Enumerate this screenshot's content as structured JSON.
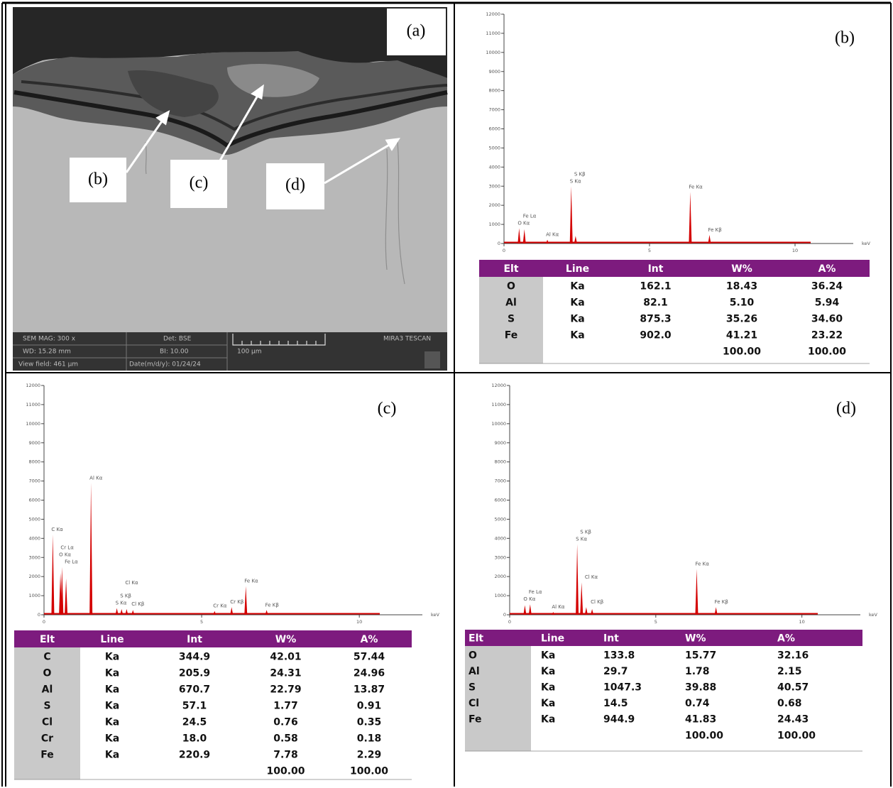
{
  "panels": [
    {
      "label": "(a)",
      "callouts": [
        "(b)",
        "(c)",
        "(d)"
      ],
      "info": [
        "SEM MAG: 300 x",
        "Det: BSE",
        "WD: 15.28 mm",
        "BI: 10.00",
        "View field: 461 µm",
        "Date(m/d/y): 01/24/24",
        "100 µm",
        "MIRA3 TESCAN"
      ]
    },
    {
      "label": "(b)",
      "spectrum": {
        "xlim": [
          0,
          12
        ],
        "xticks": [
          0,
          5,
          10
        ],
        "x_unit": "keV",
        "ylim": [
          0,
          12000
        ],
        "yticks": [
          0,
          1000,
          2000,
          3000,
          4000,
          5000,
          6000,
          7000,
          8000,
          9000,
          10000,
          11000,
          12000
        ],
        "color": "#d40000",
        "peaks": [
          {
            "label": "O Kα",
            "x": 0.52,
            "y": 800
          },
          {
            "label": "Fe Lα",
            "x": 0.7,
            "y": 750
          },
          {
            "label": "Al Kα",
            "x": 1.49,
            "y": 200
          },
          {
            "label": "S Kα",
            "x": 2.31,
            "y": 3000
          },
          {
            "label": "S Kβ",
            "x": 2.46,
            "y": 400
          },
          {
            "label": "Fe Kα",
            "x": 6.4,
            "y": 2700
          },
          {
            "label": "Fe Kβ",
            "x": 7.06,
            "y": 450
          }
        ]
      },
      "table": {
        "header": [
          "Elt",
          "Line",
          "Int",
          "W%",
          "A%"
        ],
        "rows": [
          [
            "O",
            "Ka",
            "162.1",
            "18.43",
            "36.24"
          ],
          [
            "Al",
            "Ka",
            "82.1",
            "5.10",
            "5.94"
          ],
          [
            "S",
            "Ka",
            "875.3",
            "35.26",
            "34.60"
          ],
          [
            "Fe",
            "Ka",
            "902.0",
            "41.21",
            "23.22"
          ]
        ],
        "total": [
          "100.00",
          "100.00"
        ]
      }
    },
    {
      "label": "(c)",
      "spectrum": {
        "xlim": [
          0,
          12
        ],
        "xticks": [
          0,
          5,
          10
        ],
        "x_unit": "keV",
        "ylim": [
          0,
          12000
        ],
        "yticks": [
          0,
          1000,
          2000,
          3000,
          4000,
          5000,
          6000,
          7000,
          8000,
          9000,
          10000,
          11000,
          12000
        ],
        "color": "#d40000",
        "peaks": [
          {
            "label": "C Kα",
            "x": 0.28,
            "y": 4200
          },
          {
            "label": "Fe Lα",
            "x": 0.7,
            "y": 1900
          },
          {
            "label": "O Kα",
            "x": 0.52,
            "y": 2200
          },
          {
            "label": "Cr Lα",
            "x": 0.57,
            "y": 2500
          },
          {
            "label": "Al Kα",
            "x": 1.49,
            "y": 6900
          },
          {
            "label": "S Kα",
            "x": 2.31,
            "y": 350
          },
          {
            "label": "S Kβ",
            "x": 2.46,
            "y": 300
          },
          {
            "label": "Cl Kα",
            "x": 2.62,
            "y": 300
          },
          {
            "label": "Cl Kβ",
            "x": 2.82,
            "y": 250
          },
          {
            "label": "Cr Kα",
            "x": 5.41,
            "y": 200
          },
          {
            "label": "Cr Kβ",
            "x": 5.95,
            "y": 400
          },
          {
            "label": "Fe Kα",
            "x": 6.4,
            "y": 1500
          },
          {
            "label": "Fe Kβ",
            "x": 7.06,
            "y": 250
          }
        ]
      },
      "table": {
        "header": [
          "Elt",
          "Line",
          "Int",
          "W%",
          "A%"
        ],
        "rows": [
          [
            "C",
            "Ka",
            "344.9",
            "42.01",
            "57.44"
          ],
          [
            "O",
            "Ka",
            "205.9",
            "24.31",
            "24.96"
          ],
          [
            "Al",
            "Ka",
            "670.7",
            "22.79",
            "13.87"
          ],
          [
            "S",
            "Ka",
            "57.1",
            "1.77",
            "0.91"
          ],
          [
            "Cl",
            "Ka",
            "24.5",
            "0.76",
            "0.35"
          ],
          [
            "Cr",
            "Ka",
            "18.0",
            "0.58",
            "0.18"
          ],
          [
            "Fe",
            "Ka",
            "220.9",
            "7.78",
            "2.29"
          ]
        ],
        "total": [
          "100.00",
          "100.00"
        ]
      }
    },
    {
      "label": "(d)",
      "spectrum": {
        "xlim": [
          0,
          12
        ],
        "xticks": [
          0,
          5,
          10
        ],
        "x_unit": "keV",
        "ylim": [
          0,
          12000
        ],
        "yticks": [
          0,
          1000,
          2000,
          3000,
          4000,
          5000,
          6000,
          7000,
          8000,
          9000,
          10000,
          11000,
          12000
        ],
        "color": "#d40000",
        "peaks": [
          {
            "label": "O Kα",
            "x": 0.52,
            "y": 500
          },
          {
            "label": "Fe Lα",
            "x": 0.7,
            "y": 550
          },
          {
            "label": "Al Kα",
            "x": 1.49,
            "y": 150
          },
          {
            "label": "S Kα",
            "x": 2.31,
            "y": 3700
          },
          {
            "label": "S Kβ",
            "x": 2.46,
            "y": 1700
          },
          {
            "label": "Cl Kα",
            "x": 2.62,
            "y": 400
          },
          {
            "label": "Cl Kβ",
            "x": 2.82,
            "y": 300
          },
          {
            "label": "Fe Kα",
            "x": 6.4,
            "y": 2400
          },
          {
            "label": "Fe Kβ",
            "x": 7.06,
            "y": 400
          }
        ]
      },
      "table": {
        "header": [
          "Elt",
          "Line",
          "Int",
          "W%",
          "A%"
        ],
        "rows": [
          [
            "O",
            "Ka",
            "133.8",
            "15.77",
            "32.16"
          ],
          [
            "Al",
            "Ka",
            "29.7",
            "1.78",
            "2.15"
          ],
          [
            "S",
            "Ka",
            "1047.3",
            "39.88",
            "40.57"
          ],
          [
            "Cl",
            "Ka",
            "14.5",
            "0.74",
            "0.68"
          ],
          [
            "Fe",
            "Ka",
            "944.9",
            "41.83",
            "24.43"
          ]
        ],
        "total": [
          "100.00",
          "100.00"
        ]
      }
    }
  ]
}
